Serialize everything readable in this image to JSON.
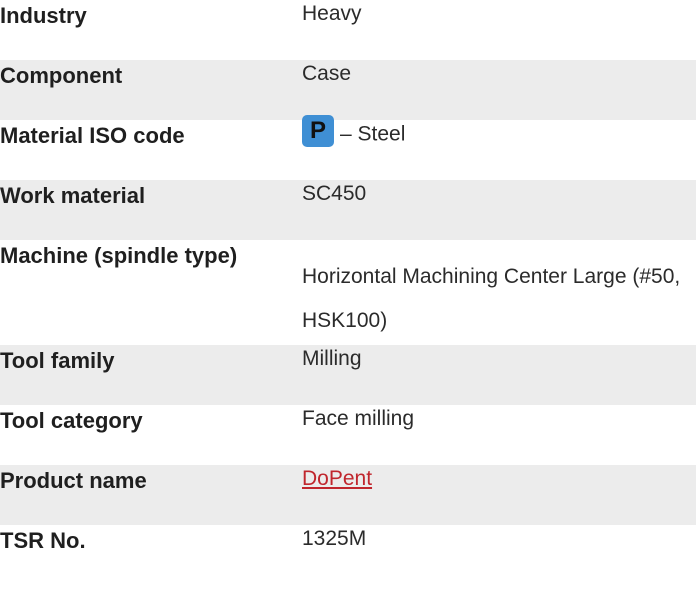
{
  "rows": [
    {
      "label": "Industry",
      "value": "Heavy"
    },
    {
      "label": "Component",
      "value": "Case"
    },
    {
      "label": "Material ISO code",
      "badge": "P",
      "value": "– Steel"
    },
    {
      "label": "Work material",
      "value": "SC450"
    },
    {
      "label": "Machine (spindle type)",
      "value": "Horizontal Machining Center Large (#50, HSK100)"
    },
    {
      "label": "Tool family",
      "value": "Milling"
    },
    {
      "label": "Tool category",
      "value": "Face milling"
    },
    {
      "label": "Product name",
      "value": "DoPent"
    },
    {
      "label": "TSR No.",
      "value": "1325M"
    }
  ],
  "colors": {
    "alt_row_bg": "#ececec",
    "iso_badge_bg": "#3f8fd4",
    "link": "#c0262d"
  }
}
